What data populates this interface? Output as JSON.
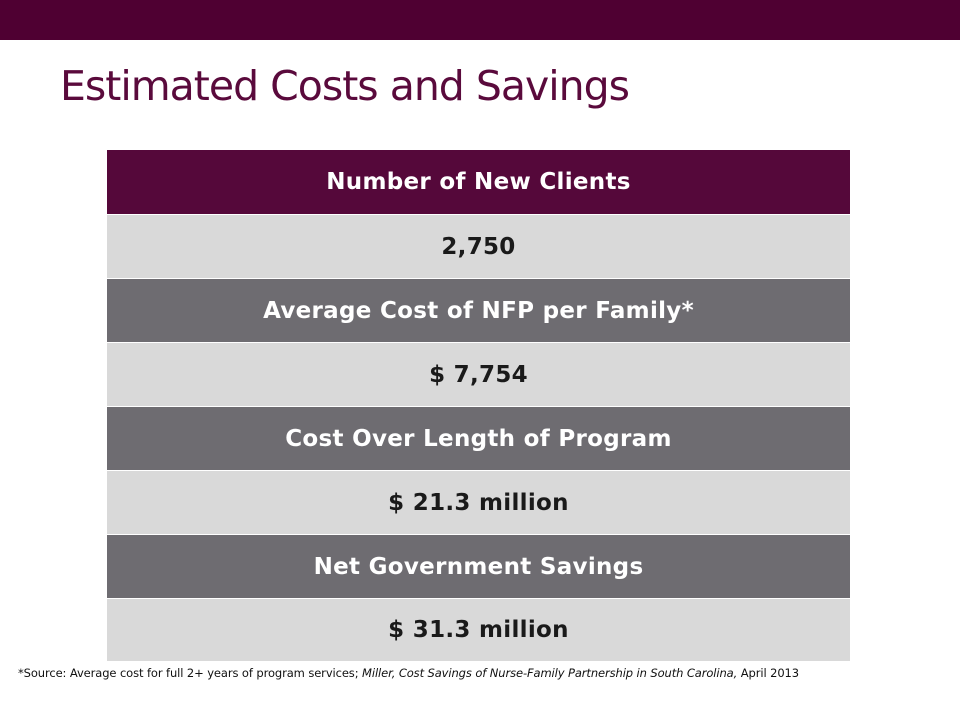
{
  "slide": {
    "title": "Estimated Costs and Savings"
  },
  "table": {
    "header": "Number of New Clients",
    "new_clients_value": "2,750",
    "avg_cost_label": "Average Cost of NFP per Family*",
    "avg_cost_value": "$ 7,754",
    "program_cost_label": "Cost Over Length of Program",
    "program_cost_value": "$ 21.3 million",
    "savings_label": "Net Government Savings",
    "savings_value": "$ 31.3 million"
  },
  "footnote": {
    "prefix": "*Source: Average cost for full 2+ years of program services; ",
    "citation": "Miller, Cost Savings of Nurse-Family Partnership in South Carolina,",
    "date": " April 2013"
  },
  "colors": {
    "brand_maroon": "#55083a",
    "label_gray": "#6e6c71",
    "value_gray": "#d9d9d9"
  }
}
